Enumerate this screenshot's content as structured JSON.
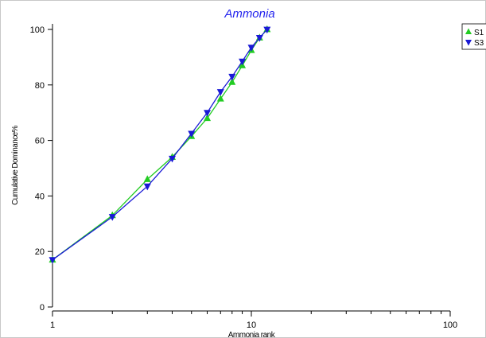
{
  "chart_data": {
    "type": "line",
    "title": "Ammonia",
    "xlabel": "Ammonia rank",
    "ylabel": "Cumulative Dominance%",
    "x_scale": "log",
    "xlim": [
      1,
      100
    ],
    "ylim": [
      0,
      100
    ],
    "x_ticks": [
      1,
      10,
      100
    ],
    "y_ticks": [
      0,
      20,
      40,
      60,
      80,
      100
    ],
    "grid": false,
    "legend_position": "top-right",
    "series": [
      {
        "name": "S1",
        "color": "#22cc22",
        "marker": "triangle-up",
        "x": [
          1,
          2,
          3,
          4,
          5,
          6,
          7,
          8,
          9,
          10,
          11,
          12
        ],
        "y": [
          17,
          33,
          46,
          54,
          61.5,
          68,
          75,
          81,
          87,
          92.5,
          97,
          100
        ]
      },
      {
        "name": "S3",
        "color": "#1a1ad6",
        "marker": "triangle-down",
        "x": [
          1,
          2,
          3,
          4,
          5,
          6,
          7,
          8,
          9,
          10,
          11,
          12
        ],
        "y": [
          17,
          32.5,
          43.5,
          53.5,
          62.5,
          70,
          77.5,
          83,
          88.5,
          93.5,
          97,
          100
        ]
      }
    ]
  }
}
